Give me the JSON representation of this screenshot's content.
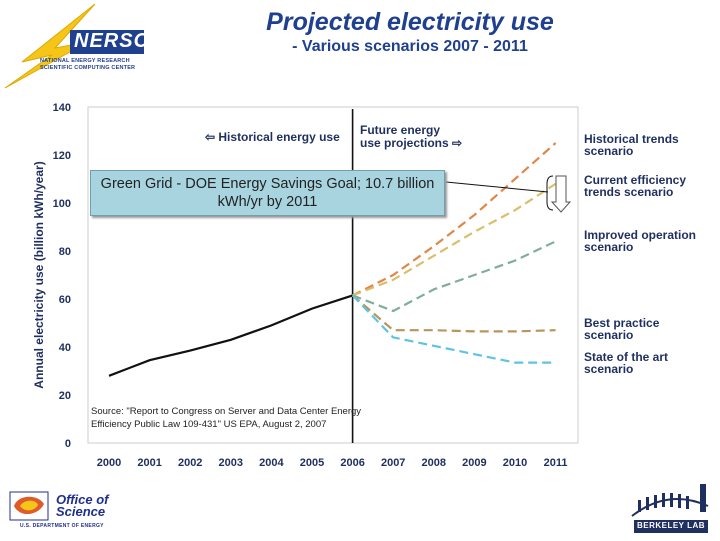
{
  "header": {
    "title": "Projected electricity use",
    "subtitle": "- Various scenarios 2007 - 2011"
  },
  "logos": {
    "nersc": {
      "mark": "NERSC",
      "line1": "NATIONAL ENERGY RESEARCH",
      "line2": "SCIENTIFIC COMPUTING CENTER"
    },
    "doe": {
      "line1": "Office of",
      "line2": "Science",
      "sub": "U.S. DEPARTMENT OF ENERGY"
    },
    "lbl": {
      "text": "BERKELEY LAB"
    }
  },
  "annotations": {
    "historical": "⇦ Historical energy use",
    "future_line1": "Future energy",
    "future_line2": "use projections ⇨",
    "callout": "Green Grid - DOE Energy Savings Goal; 10.7 billion kWh/yr by 2011",
    "source": "Source: \"Report to Congress on Server and Data Center Energy Efficiency Public Law 109-431\" US EPA, August 2, 2007"
  },
  "colors": {
    "historical": "#111111",
    "historical_trends": "#e0874a",
    "current_efficiency": "#d9bf6a",
    "improved_operation": "#7fae9d",
    "best_practice": "#b8955a",
    "state_of_the_art": "#5ec4e0"
  },
  "chart_data": {
    "type": "line",
    "title": "",
    "xlabel": "",
    "ylabel": "Annual electricity use (billion kWh/year)",
    "ylim": [
      0,
      140
    ],
    "yticks": [
      0,
      20,
      40,
      60,
      80,
      100,
      120,
      140
    ],
    "x": [
      "2000",
      "2001",
      "2002",
      "2003",
      "2004",
      "2005",
      "2006",
      "2007",
      "2008",
      "2009",
      "2010",
      "2011"
    ],
    "series": [
      {
        "name": "Historical energy use",
        "style": "solid",
        "color_key": "historical",
        "values": [
          28,
          34.5,
          38.5,
          43,
          49,
          56,
          61.5,
          null,
          null,
          null,
          null,
          null
        ]
      },
      {
        "name": "Historical trends scenario",
        "style": "dashed",
        "color_key": "historical_trends",
        "values": [
          null,
          null,
          null,
          null,
          null,
          null,
          61.5,
          70,
          82,
          95,
          110,
          125
        ]
      },
      {
        "name": "Current efficiency trends scenario",
        "style": "dashed",
        "color_key": "current_efficiency",
        "values": [
          null,
          null,
          null,
          null,
          null,
          null,
          61.5,
          68,
          78,
          88,
          97,
          108
        ]
      },
      {
        "name": "Improved operation scenario",
        "style": "dashed",
        "color_key": "improved_operation",
        "values": [
          null,
          null,
          null,
          null,
          null,
          null,
          61.5,
          55,
          64,
          70,
          76,
          84
        ]
      },
      {
        "name": "Best practice scenario",
        "style": "dashed",
        "color_key": "best_practice",
        "values": [
          null,
          null,
          null,
          null,
          null,
          null,
          61.5,
          47,
          47,
          46.5,
          46.5,
          47
        ]
      },
      {
        "name": "State of the art scenario",
        "style": "dashed",
        "color_key": "state_of_the_art",
        "values": [
          null,
          null,
          null,
          null,
          null,
          null,
          61.5,
          44,
          40.5,
          37,
          33.5,
          33.5
        ]
      }
    ],
    "legend": [
      {
        "key": "historical_trends",
        "line1": "Historical trends",
        "line2": "scenario"
      },
      {
        "key": "current_efficiency",
        "line1": "Current efficiency",
        "line2": "trends scenario"
      },
      {
        "key": "improved_operation",
        "line1": "Improved operation",
        "line2": "scenario"
      },
      {
        "key": "best_practice",
        "line1": "Best practice",
        "line2": "scenario"
      },
      {
        "key": "state_of_the_art",
        "line1": "State of the art",
        "line2": "scenario"
      }
    ],
    "divider_x": "2006"
  }
}
